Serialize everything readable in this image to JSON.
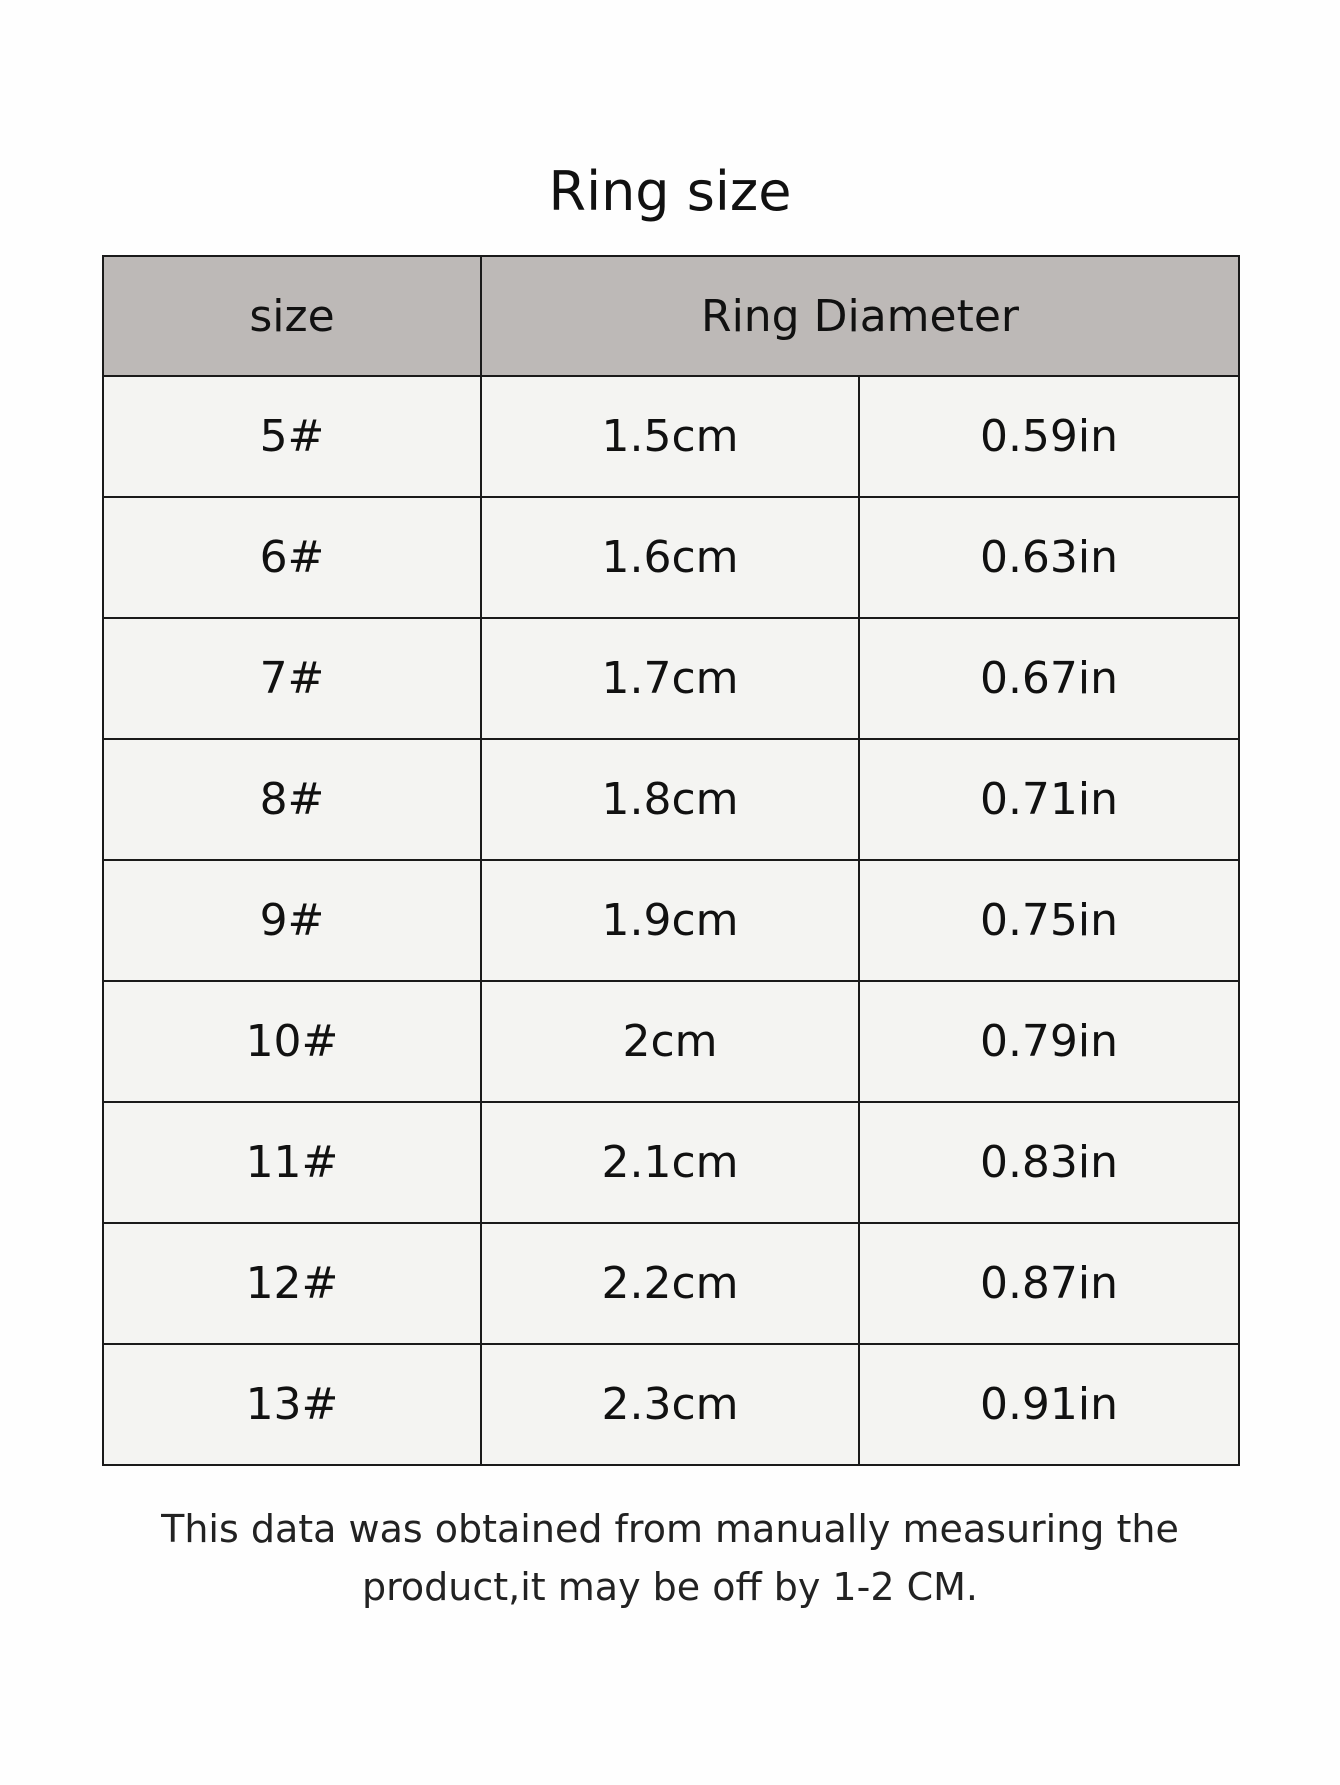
{
  "title": "Ring size",
  "headers": {
    "size": "size",
    "diameter": "Ring Diameter"
  },
  "rows": [
    {
      "size": "5#",
      "cm": "1.5cm",
      "in": "0.59in"
    },
    {
      "size": "6#",
      "cm": "1.6cm",
      "in": "0.63in"
    },
    {
      "size": "7#",
      "cm": "1.7cm",
      "in": "0.67in"
    },
    {
      "size": "8#",
      "cm": "1.8cm",
      "in": "0.71in"
    },
    {
      "size": "9#",
      "cm": "1.9cm",
      "in": "0.75in"
    },
    {
      "size": "10#",
      "cm": "2cm",
      "in": "0.79in"
    },
    {
      "size": "11#",
      "cm": "2.1cm",
      "in": "0.83in"
    },
    {
      "size": "12#",
      "cm": "2.2cm",
      "in": "0.87in"
    },
    {
      "size": "13#",
      "cm": "2.3cm",
      "in": "0.91in"
    }
  ],
  "footer": {
    "line1": "This data was obtained from manually measuring the",
    "line2": "product,it may be off by 1-2 CM."
  },
  "colors": {
    "header_bg": "#bdb9b7",
    "row_bg": "#f4f4f2"
  }
}
